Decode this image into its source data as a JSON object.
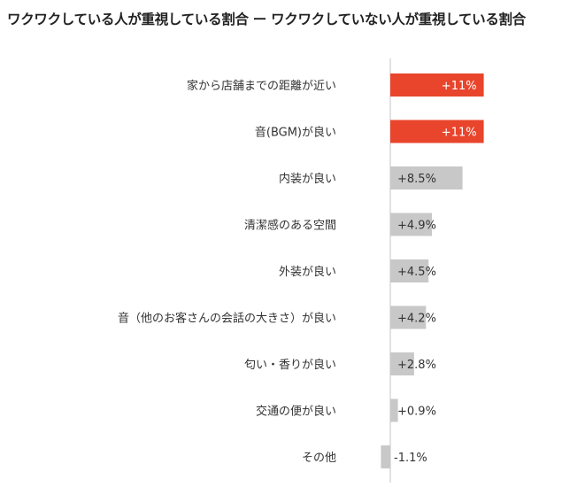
{
  "chart_data": {
    "type": "bar",
    "orientation": "horizontal",
    "title": "ワクワクしている人が重視している割合 ー ワクワクしていない人が重視している割合",
    "unit": "%",
    "categories": [
      "家から店舗までの距離が近い",
      "音(BGM)が良い",
      "内装が良い",
      "清潔感のある空間",
      "外装が良い",
      "音（他のお客さんの会話の大きさ）が良い",
      "匂い・香りが良い",
      "交通の便が良い",
      "その他"
    ],
    "values": [
      11,
      11,
      8.5,
      4.9,
      4.5,
      4.2,
      2.8,
      0.9,
      -1.1
    ],
    "value_labels": [
      "+11%",
      "+11%",
      "+8.5%",
      "+4.9%",
      "+4.5%",
      "+4.2%",
      "+2.8%",
      "+0.9%",
      "-1.1%"
    ],
    "highlighted": [
      true,
      true,
      false,
      false,
      false,
      false,
      false,
      false,
      false
    ],
    "colors": {
      "highlight": "#e8452c",
      "normal": "#c8c8c8",
      "zero_line": "#d9d9d9",
      "label_on_highlight": "#ffffff",
      "label_default": "#333333"
    }
  }
}
